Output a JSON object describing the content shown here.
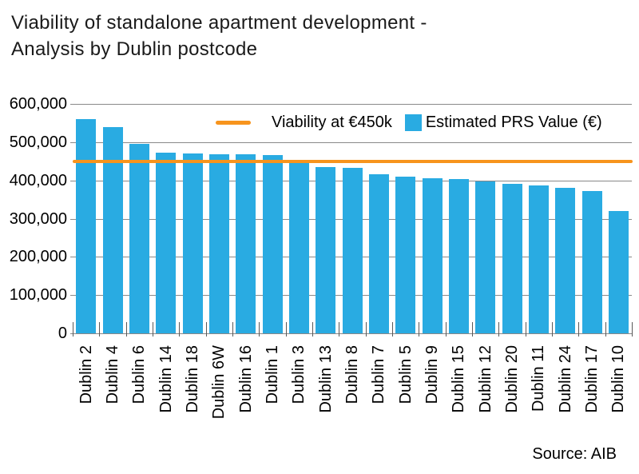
{
  "title": "Viability of standalone apartment development -\nAnalysis by Dublin postcode",
  "source": "Source: AIB",
  "legend": {
    "line_label": "Viability at €450k",
    "bar_label": "Estimated PRS Value (€)"
  },
  "colors": {
    "bar": "#29ABE2",
    "reference_line": "#F7941D",
    "gridline": "#898989",
    "tick": "#595959",
    "text": "#000000",
    "title_text": "#1A1A1A"
  },
  "chart_data": {
    "type": "bar",
    "title": "Viability of standalone apartment development - Analysis by Dublin postcode",
    "categories": [
      "Dublin 2",
      "Dublin 4",
      "Dublin 6",
      "Dublin 14",
      "Dublin 18",
      "Dublin 6W",
      "Dublin 16",
      "Dublin 1",
      "Dublin 3",
      "Dublin 13",
      "Dublin 8",
      "Dublin 7",
      "Dublin 5",
      "Dublin 9",
      "Dublin 15",
      "Dublin 12",
      "Dublin 20",
      "Dublin 11",
      "Dublin 24",
      "Dublin 17",
      "Dublin 10"
    ],
    "series": [
      {
        "name": "Estimated PRS Value (€)",
        "values": [
          560000,
          540000,
          495000,
          473000,
          471000,
          469000,
          468000,
          466000,
          447000,
          434000,
          432000,
          417000,
          410000,
          405000,
          403000,
          397000,
          392000,
          387000,
          381000,
          372000,
          320000
        ]
      }
    ],
    "reference_line": {
      "name": "Viability at €450k",
      "value": 450000
    },
    "xlabel": "",
    "ylabel": "",
    "ylim": [
      0,
      600000
    ],
    "yticks": [
      0,
      100000,
      200000,
      300000,
      400000,
      500000,
      600000
    ],
    "ytick_labels": [
      "0",
      "100,000",
      "200,000",
      "300,000",
      "400,000",
      "500,000",
      "600,000"
    ],
    "grid": true,
    "legend_position": "top-inside",
    "source": "Source: AIB"
  }
}
